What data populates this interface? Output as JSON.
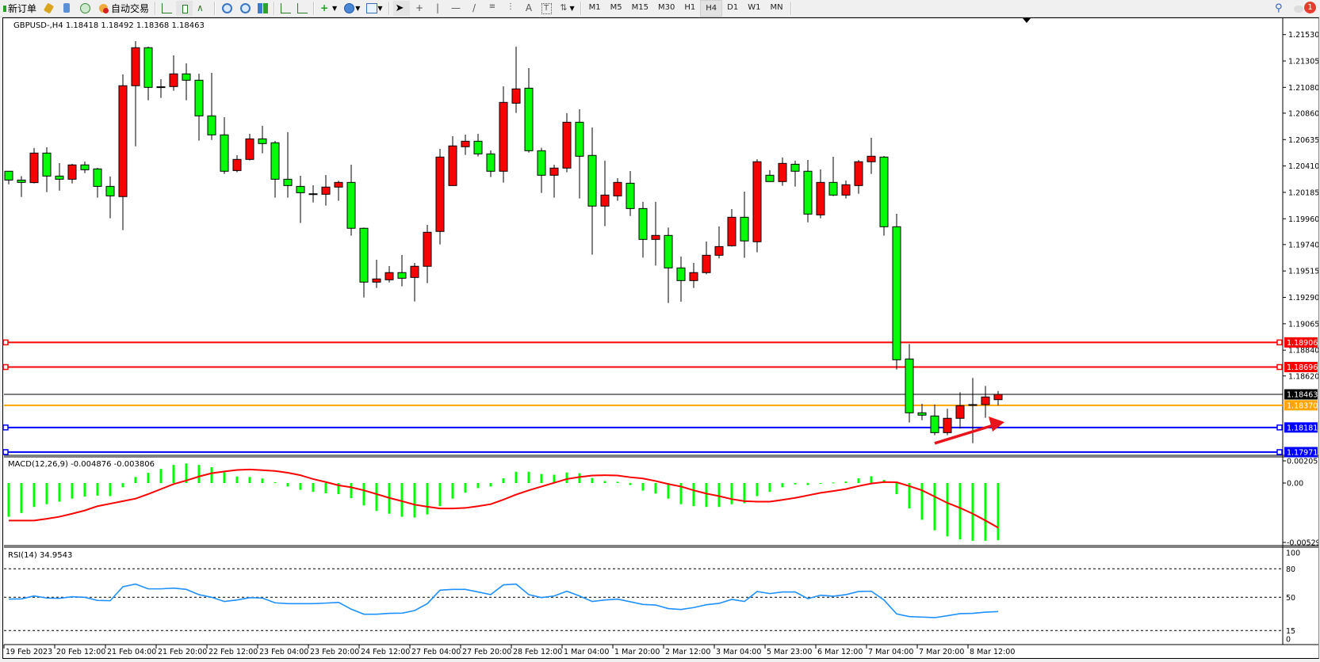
{
  "toolbar": {
    "new_order_label": "新订单",
    "auto_trading_label": "自动交易",
    "icons": [
      "new-order-icon",
      "metaeditor-icon",
      "strategy-tester-icon",
      "signals-icon",
      "auto-trading-icon",
      "bar-chart-icon",
      "candlestick-icon",
      "line-chart-icon",
      "zoom-in-icon",
      "zoom-out-icon",
      "tile-windows-icon",
      "chart-shift-icon",
      "autoscroll-icon",
      "indicators-icon",
      "periods-icon",
      "templates-icon",
      "cursor-icon",
      "crosshair-icon",
      "vertical-line-icon",
      "horizontal-line-icon",
      "trendline-icon",
      "fibonacci-icon",
      "fibonacci-fan-icon",
      "text-icon",
      "text-label-icon",
      "arrows-icon",
      "search-icon",
      "notifications-icon"
    ],
    "timeframes": [
      "M1",
      "M5",
      "M15",
      "M30",
      "H1",
      "H4",
      "D1",
      "W1",
      "MN"
    ],
    "active_timeframe": "H4",
    "notification_count": "1"
  },
  "chart_data": {
    "type": "candlestick",
    "header": "GBPUSD-,H4  1.18418 1.18492 1.18368 1.18463",
    "symbol": "GBPUSD-",
    "timeframe": "H4",
    "colors": {
      "bull_body": "#ff0000",
      "bear_body": "#00ff00",
      "wick": "#000000",
      "macd_hist": "#00ff00",
      "macd_signal": "#ff0000",
      "rsi": "#1e90ff"
    },
    "ohlc_fields": [
      "open",
      "high",
      "low",
      "close"
    ],
    "candles": [
      [
        1.20365,
        1.20365,
        1.20254,
        1.2029
      ],
      [
        1.2029,
        1.20324,
        1.20146,
        1.2027
      ],
      [
        1.20268,
        1.20563,
        1.20261,
        1.2052
      ],
      [
        1.2052,
        1.20569,
        1.20187,
        1.20324
      ],
      [
        1.20324,
        1.20434,
        1.202,
        1.20297
      ],
      [
        1.20297,
        1.20428,
        1.20261,
        1.20419
      ],
      [
        1.20419,
        1.20448,
        1.20349,
        1.20378
      ],
      [
        1.20385,
        1.20394,
        1.2014,
        1.20236
      ],
      [
        1.20236,
        1.2032,
        1.19964,
        1.20155
      ],
      [
        1.20149,
        1.2119,
        1.19863,
        1.21094
      ],
      [
        1.21094,
        1.21474,
        1.20578,
        1.21418
      ],
      [
        1.21418,
        1.21427,
        1.2097,
        1.2108
      ],
      [
        1.21085,
        1.2115,
        1.2099,
        1.21082
      ],
      [
        1.21087,
        1.21352,
        1.21051,
        1.21195
      ],
      [
        1.21195,
        1.21285,
        1.2097,
        1.21141
      ],
      [
        1.21141,
        1.21197,
        1.20626,
        1.20837
      ],
      [
        1.20837,
        1.21204,
        1.20632,
        1.20675
      ],
      [
        1.20675,
        1.20826,
        1.20342,
        1.20365
      ],
      [
        1.20371,
        1.20502,
        1.20356,
        1.20466
      ],
      [
        1.20466,
        1.20684,
        1.20457,
        1.20641
      ],
      [
        1.20641,
        1.20752,
        1.20518,
        1.20601
      ],
      [
        1.20608,
        1.20623,
        1.2014,
        1.20297
      ],
      [
        1.20297,
        1.20698,
        1.2014,
        1.20243
      ],
      [
        1.20236,
        1.20326,
        1.19924,
        1.20182
      ],
      [
        1.20173,
        1.20245,
        1.20099,
        1.20171
      ],
      [
        1.20169,
        1.20333,
        1.20072,
        1.2023
      ],
      [
        1.2023,
        1.20284,
        1.20113,
        1.2027
      ],
      [
        1.2027,
        1.20421,
        1.19816,
        1.19879
      ],
      [
        1.19879,
        1.19885,
        1.19289,
        1.1942
      ],
      [
        1.1942,
        1.19611,
        1.1937,
        1.19447
      ],
      [
        1.1944,
        1.19557,
        1.19417,
        1.19501
      ],
      [
        1.19501,
        1.19651,
        1.19384,
        1.19453
      ],
      [
        1.1946,
        1.19584,
        1.19255,
        1.19555
      ],
      [
        1.19555,
        1.19908,
        1.19411,
        1.19845
      ],
      [
        1.19852,
        1.20556,
        1.19741,
        1.20486
      ],
      [
        1.20243,
        1.20664,
        1.20243,
        1.20581
      ],
      [
        1.20574,
        1.20677,
        1.20504,
        1.20621
      ],
      [
        1.20621,
        1.20684,
        1.20491,
        1.20513
      ],
      [
        1.20513,
        1.20542,
        1.20315,
        1.20365
      ],
      [
        1.20365,
        1.21089,
        1.20268,
        1.20952
      ],
      [
        1.20945,
        1.21427,
        1.20862,
        1.21067
      ],
      [
        1.21073,
        1.21244,
        1.20524,
        1.2054
      ],
      [
        1.2054,
        1.20565,
        1.2018,
        1.20331
      ],
      [
        1.20331,
        1.20421,
        1.2014,
        1.20392
      ],
      [
        1.20392,
        1.2086,
        1.20356,
        1.20783
      ],
      [
        1.20783,
        1.20893,
        1.20133,
        1.20493
      ],
      [
        1.205,
        1.20738,
        1.19654,
        1.20068
      ],
      [
        1.20068,
        1.20455,
        1.19897,
        1.20162
      ],
      [
        1.20155,
        1.20306,
        1.20113,
        1.2027
      ],
      [
        1.20263,
        1.20367,
        1.19984,
        1.20047
      ],
      [
        1.20047,
        1.20104,
        1.19629,
        1.19784
      ],
      [
        1.19784,
        1.20104,
        1.19561,
        1.19818
      ],
      [
        1.19818,
        1.19885,
        1.19242,
        1.19541
      ],
      [
        1.19541,
        1.19638,
        1.19253,
        1.19433
      ],
      [
        1.19433,
        1.19584,
        1.1937,
        1.19501
      ],
      [
        1.19501,
        1.19766,
        1.19487,
        1.19649
      ],
      [
        1.19649,
        1.19894,
        1.19622,
        1.19723
      ],
      [
        1.1973,
        1.20043,
        1.19723,
        1.19973
      ],
      [
        1.19973,
        1.20191,
        1.19627,
        1.19771
      ],
      [
        1.19764,
        1.20468,
        1.19674,
        1.20446
      ],
      [
        1.20331,
        1.20374,
        1.20277,
        1.20277
      ],
      [
        1.20277,
        1.20482,
        1.20241,
        1.20432
      ],
      [
        1.20425,
        1.20455,
        1.20234,
        1.20365
      ],
      [
        1.20365,
        1.20461,
        1.1993,
        1.2
      ],
      [
        1.19993,
        1.2038,
        1.19964,
        1.2027
      ],
      [
        1.2027,
        1.20488,
        1.20153,
        1.20162
      ],
      [
        1.20162,
        1.20286,
        1.20133,
        1.2025
      ],
      [
        1.20243,
        1.20461,
        1.20173,
        1.20446
      ],
      [
        1.20446,
        1.2065,
        1.20342,
        1.20493
      ],
      [
        1.20486,
        1.20495,
        1.19816,
        1.19892
      ],
      [
        1.19892,
        1.20002,
        1.18675,
        1.18758
      ],
      [
        1.18765,
        1.18893,
        1.18223,
        1.18306
      ],
      [
        1.18306,
        1.18382,
        1.18243,
        1.18286
      ],
      [
        1.18279,
        1.18376,
        1.18115,
        1.18137
      ],
      [
        1.18137,
        1.1834,
        1.18115,
        1.18259
      ],
      [
        1.18259,
        1.18481,
        1.18171,
        1.18367
      ],
      [
        1.18376,
        1.18603,
        1.18047,
        1.18373
      ],
      [
        1.18376,
        1.18535,
        1.18263,
        1.18441
      ],
      [
        1.18418,
        1.18492,
        1.18368,
        1.18463
      ]
    ],
    "price_axis": {
      "ticks": [
        "1.21530",
        "1.21305",
        "1.21080",
        "1.20860",
        "1.20635",
        "1.20410",
        "1.20185",
        "1.19960",
        "1.19740",
        "1.19515",
        "1.19290",
        "1.19065",
        "1.18840",
        "1.18620"
      ]
    },
    "horizontal_lines": [
      {
        "price": "1.18906",
        "color": "#ff0000",
        "handles": true
      },
      {
        "price": "1.18696",
        "color": "#ff0000",
        "handles": true
      },
      {
        "price": "1.18463",
        "color": "#000000",
        "handles": false,
        "role": "bid"
      },
      {
        "price": "1.18370",
        "color": "#ffa500",
        "handles": false
      },
      {
        "price": "1.18181",
        "color": "#0000ff",
        "handles": true
      },
      {
        "price": "1.17971",
        "color": "#0000ff",
        "handles": true
      }
    ],
    "annotation_arrow": {
      "color": "#e8131b",
      "from_candle": 73,
      "from_price": 1.18046,
      "to_candle": 79,
      "to_price": 1.18227
    },
    "time_axis": [
      "19 Feb 2023",
      "20 Feb 12:00",
      "21 Feb 04:00",
      "21 Feb 20:00",
      "22 Feb 12:00",
      "23 Feb 04:00",
      "23 Feb 20:00",
      "24 Feb 12:00",
      "27 Feb 04:00",
      "27 Feb 20:00",
      "28 Feb 12:00",
      "1 Mar 04:00",
      "1 Mar 20:00",
      "2 Mar 12:00",
      "3 Mar 04:00",
      "5 Mar 23:00",
      "6 Mar 12:00",
      "7 Mar 04:00",
      "7 Mar 20:00",
      "8 Mar 12:00"
    ],
    "macd": {
      "label": "MACD(12,26,9) -0.004876 -0.003806",
      "axis_ticks": [
        "0.002055",
        "0.00",
        "-0.005292"
      ],
      "range": [
        -0.005292,
        0.002055
      ],
      "histogram": [
        -0.002876,
        -0.002554,
        -0.002039,
        -0.001803,
        -0.001588,
        -0.00133,
        -0.001159,
        -0.001073,
        -0.001116,
        -0.000365,
        0.000515,
        0.00088,
        0.001202,
        0.001545,
        0.001674,
        0.001545,
        0.001352,
        0.000923,
        0.000558,
        0.000515,
        0.000386,
        6.4e-05,
        -0.0003,
        -0.000579,
        -0.000751,
        -0.00088,
        -0.000944,
        -0.001288,
        -0.00191,
        -0.002382,
        -0.002618,
        -0.002876,
        -0.00294,
        -0.002682,
        -0.001974,
        -0.00133,
        -0.000815,
        -0.000429,
        -0.0003,
        0.000408,
        0.000966,
        0.000966,
        0.000773,
        0.000708,
        0.000901,
        0.000837,
        0.000429,
        0.000172,
        0.000107,
        -0.000172,
        -0.000644,
        -0.000901,
        -0.00133,
        -0.001803,
        -0.001974,
        -0.002039,
        -0.002039,
        -0.001803,
        -0.001717,
        -0.001116,
        -0.000751,
        -0.000365,
        -0.000107,
        -0.000172,
        -4.3e-05,
        4.3e-05,
        0.000129,
        0.000408,
        0.000579,
        0.000258,
        -0.000944,
        -0.002167,
        -0.003133,
        -0.004034,
        -0.004549,
        -0.004807,
        -0.004936,
        -0.004936,
        -0.004876
      ],
      "signal": [
        -0.003197,
        -0.003197,
        -0.003197,
        -0.003047,
        -0.002876,
        -0.002618,
        -0.002339,
        -0.001974,
        -0.00176,
        -0.001545,
        -0.00133,
        -0.000944,
        -0.000515,
        -8.6e-05,
        0.000215,
        0.000558,
        0.000837,
        0.000987,
        0.001116,
        0.001159,
        0.001094,
        0.00103,
        0.00088,
        0.000665,
        0.000343,
        8.6e-05,
        -0.000193,
        -0.000365,
        -0.000622,
        -0.000944,
        -0.001266,
        -0.001545,
        -0.001845,
        -0.002017,
        -0.002167,
        -0.002167,
        -0.002124,
        -0.001974,
        -0.001803,
        -0.001416,
        -0.000987,
        -0.000622,
        -0.0003,
        2.1e-05,
        0.000343,
        0.000515,
        0.000644,
        0.000665,
        0.000644,
        0.000494,
        0.000386,
        0.000172,
        -8.6e-05,
        -0.0003,
        -0.000622,
        -0.000901,
        -0.001116,
        -0.001373,
        -0.001545,
        -0.001588,
        -0.001588,
        -0.001438,
        -0.001266,
        -0.001052,
        -0.000837,
        -0.000687,
        -0.000515,
        -0.000258,
        -4.3e-05,
        8.6e-05,
        6.4e-05,
        -0.000258,
        -0.000622,
        -0.001159,
        -0.001695,
        -0.002124,
        -0.002618,
        -0.003197,
        -0.003806
      ]
    },
    "rsi": {
      "label": "RSI(14) 34.9543",
      "axis_ticks": [
        "100",
        "80",
        "50",
        "15",
        "0"
      ],
      "levels": [
        80,
        50,
        15
      ],
      "range": [
        0,
        100
      ],
      "values": [
        48.1,
        48.3,
        51.4,
        49.2,
        48.9,
        50.6,
        50.0,
        46.7,
        46.4,
        61.1,
        63.9,
        58.9,
        58.9,
        59.7,
        58.3,
        52.8,
        50.0,
        45.6,
        47.2,
        49.7,
        49.2,
        44.2,
        43.3,
        43.3,
        43.3,
        43.9,
        44.7,
        37.5,
        32.2,
        32.2,
        33.1,
        33.3,
        36.1,
        43.3,
        57.5,
        58.3,
        58.3,
        55.6,
        52.8,
        63.1,
        63.9,
        52.8,
        49.7,
        51.4,
        56.4,
        51.4,
        45.6,
        47.2,
        48.1,
        45.3,
        42.5,
        41.9,
        38.1,
        37.2,
        39.2,
        42.2,
        43.6,
        47.8,
        45.6,
        56.1,
        53.9,
        55.6,
        55.6,
        48.6,
        52.2,
        51.1,
        52.8,
        56.1,
        56.4,
        47.2,
        32.5,
        29.7,
        29.2,
        28.6,
        30.6,
        32.8,
        33.1,
        34.4,
        34.95
      ]
    }
  }
}
